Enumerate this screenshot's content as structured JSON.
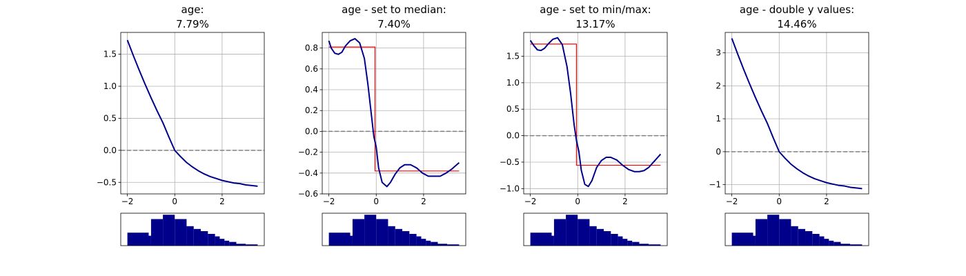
{
  "colors": {
    "curve": "#00008b",
    "step": "#ff0000",
    "reference": "#808080",
    "grid": "#b0b0b0",
    "histogram": "#00008b",
    "axes": "#000000"
  },
  "chart_data": [
    {
      "type": "line",
      "title": "age:\n7.79%",
      "xlabel": "",
      "ylabel": "",
      "xlim": [
        -2.28,
        3.78
      ],
      "ylim": [
        -0.68,
        1.84
      ],
      "grid": true,
      "xticks": [
        -2,
        0,
        2
      ],
      "yticks": [
        -0.5,
        0.0,
        0.5,
        1.0,
        1.5
      ],
      "ytick_labels": [
        "−0.5",
        "0.0",
        "0.5",
        "1.0",
        "1.5"
      ],
      "reference_line": 0,
      "series": [
        {
          "style": "curve",
          "x": [
            -2.0,
            -1.75,
            -1.5,
            -1.25,
            -1.0,
            -0.75,
            -0.5,
            -0.25,
            0.0,
            0.25,
            0.5,
            0.75,
            1.0,
            1.25,
            1.5,
            1.75,
            2.0,
            2.25,
            2.5,
            2.75,
            3.0,
            3.25,
            3.5
          ],
          "y": [
            1.72,
            1.48,
            1.25,
            1.03,
            0.82,
            0.62,
            0.43,
            0.21,
            0.0,
            -0.1,
            -0.19,
            -0.26,
            -0.32,
            -0.37,
            -0.41,
            -0.44,
            -0.47,
            -0.49,
            -0.51,
            -0.52,
            -0.54,
            -0.55,
            -0.56
          ]
        }
      ]
    },
    {
      "type": "line",
      "title": "age - set to median:\n7.40%",
      "xlabel": "",
      "ylabel": "",
      "xlim": [
        -2.28,
        3.78
      ],
      "ylim": [
        -0.6,
        0.95
      ],
      "grid": true,
      "xticks": [
        -2,
        0,
        2
      ],
      "yticks": [
        -0.6,
        -0.4,
        -0.2,
        0.0,
        0.2,
        0.4,
        0.6,
        0.8
      ],
      "ytick_labels": [
        "−0.6",
        "−0.4",
        "−0.2",
        "0.0",
        "0.2",
        "0.4",
        "0.6",
        "0.8"
      ],
      "reference_line": 0,
      "series": [
        {
          "style": "step",
          "x": [
            -2.0,
            -0.05,
            -0.05,
            3.5
          ],
          "y": [
            0.81,
            0.81,
            -0.38,
            -0.38
          ]
        },
        {
          "style": "curve",
          "x": [
            -2.0,
            -1.9,
            -1.75,
            -1.6,
            -1.45,
            -1.3,
            -1.1,
            -0.9,
            -0.7,
            -0.5,
            -0.35,
            -0.2,
            -0.1,
            0.0,
            0.1,
            0.25,
            0.45,
            0.6,
            0.8,
            1.0,
            1.2,
            1.45,
            1.7,
            1.95,
            2.2,
            2.45,
            2.7,
            2.95,
            3.2,
            3.5
          ],
          "y": [
            0.87,
            0.8,
            0.75,
            0.74,
            0.76,
            0.82,
            0.87,
            0.89,
            0.85,
            0.7,
            0.45,
            0.15,
            -0.05,
            -0.15,
            -0.35,
            -0.49,
            -0.53,
            -0.49,
            -0.41,
            -0.35,
            -0.32,
            -0.32,
            -0.35,
            -0.4,
            -0.43,
            -0.43,
            -0.43,
            -0.4,
            -0.36,
            -0.3
          ]
        }
      ]
    },
    {
      "type": "line",
      "title": "age - set to min/max:\n13.17%",
      "xlabel": "",
      "ylabel": "",
      "xlim": [
        -2.28,
        3.78
      ],
      "ylim": [
        -1.1,
        1.95
      ],
      "grid": true,
      "xticks": [
        -2,
        0,
        2
      ],
      "yticks": [
        -1.0,
        -0.5,
        0.0,
        0.5,
        1.0,
        1.5
      ],
      "ytick_labels": [
        "−1.0",
        "−0.5",
        "0.0",
        "0.5",
        "1.0",
        "1.5"
      ],
      "reference_line": 0,
      "series": [
        {
          "style": "step",
          "x": [
            -2.0,
            -0.05,
            -0.05,
            3.5
          ],
          "y": [
            1.73,
            1.73,
            -0.56,
            -0.56
          ]
        },
        {
          "style": "curve",
          "x": [
            -2.0,
            -1.85,
            -1.7,
            -1.55,
            -1.4,
            -1.25,
            -1.05,
            -0.85,
            -0.65,
            -0.45,
            -0.3,
            -0.15,
            -0.05,
            0.05,
            0.15,
            0.3,
            0.45,
            0.6,
            0.8,
            1.0,
            1.2,
            1.4,
            1.65,
            1.9,
            2.15,
            2.4,
            2.6,
            2.8,
            3.0,
            3.2,
            3.5
          ],
          "y": [
            1.8,
            1.7,
            1.62,
            1.61,
            1.65,
            1.73,
            1.82,
            1.85,
            1.72,
            1.3,
            0.8,
            0.2,
            -0.1,
            -0.3,
            -0.65,
            -0.92,
            -0.96,
            -0.85,
            -0.6,
            -0.47,
            -0.41,
            -0.41,
            -0.46,
            -0.56,
            -0.64,
            -0.68,
            -0.68,
            -0.66,
            -0.6,
            -0.5,
            -0.35
          ]
        }
      ]
    },
    {
      "type": "line",
      "title": "age - double y values:\n14.46%",
      "xlabel": "",
      "ylabel": "",
      "xlim": [
        -2.28,
        3.78
      ],
      "ylim": [
        -1.28,
        3.62
      ],
      "grid": true,
      "xticks": [
        -2,
        0,
        2
      ],
      "yticks": [
        -1,
        0,
        1,
        2,
        3
      ],
      "ytick_labels": [
        "−1",
        "0",
        "1",
        "2",
        "3"
      ],
      "reference_line": 0,
      "series": [
        {
          "style": "step",
          "x": [
            -2.0,
            -1.75,
            -1.5,
            -1.25,
            -1.0,
            -0.75,
            -0.5,
            -0.25,
            0.0,
            0.25,
            0.5,
            0.75,
            1.0,
            1.25,
            1.5,
            1.75,
            2.0,
            2.25,
            2.5,
            2.75,
            3.0,
            3.25,
            3.5
          ],
          "y": [
            3.44,
            2.96,
            2.5,
            2.06,
            1.64,
            1.24,
            0.86,
            0.42,
            0.0,
            -0.2,
            -0.38,
            -0.52,
            -0.64,
            -0.74,
            -0.82,
            -0.88,
            -0.94,
            -0.98,
            -1.02,
            -1.04,
            -1.08,
            -1.1,
            -1.12
          ]
        },
        {
          "style": "curve",
          "x": [
            -2.0,
            -1.75,
            -1.5,
            -1.25,
            -1.0,
            -0.75,
            -0.5,
            -0.25,
            0.0,
            0.25,
            0.5,
            0.75,
            1.0,
            1.25,
            1.5,
            1.75,
            2.0,
            2.25,
            2.5,
            2.75,
            3.0,
            3.25,
            3.5
          ],
          "y": [
            3.44,
            2.96,
            2.5,
            2.06,
            1.64,
            1.24,
            0.86,
            0.42,
            0.0,
            -0.2,
            -0.38,
            -0.52,
            -0.64,
            -0.74,
            -0.82,
            -0.88,
            -0.94,
            -0.98,
            -1.02,
            -1.04,
            -1.08,
            -1.1,
            -1.12
          ]
        }
      ]
    }
  ],
  "histogram": {
    "type": "bar",
    "bin_edges": [
      -2.0,
      -1.1,
      -1.0,
      -0.5,
      0.0,
      0.5,
      0.8,
      1.1,
      1.4,
      1.7,
      1.9,
      2.1,
      2.3,
      2.6,
      3.0,
      3.5
    ],
    "values": [
      0.42,
      0.32,
      0.86,
      1.0,
      0.86,
      0.63,
      0.54,
      0.47,
      0.38,
      0.3,
      0.22,
      0.16,
      0.12,
      0.06,
      0.04
    ],
    "ylim": [
      0,
      1.05
    ]
  }
}
